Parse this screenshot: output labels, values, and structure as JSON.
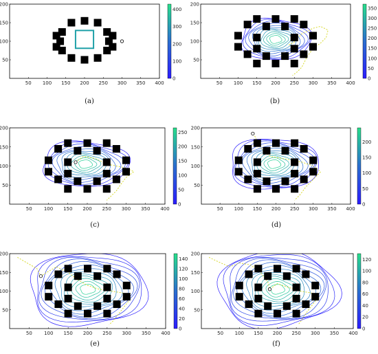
{
  "figure": {
    "panels_count": 6
  },
  "chart_data": [
    {
      "type": "contour",
      "caption": "(a)",
      "xlim": [
        0,
        400
      ],
      "ylim": [
        0,
        200
      ],
      "xticks": [
        "50",
        "100",
        "150",
        "200",
        "250",
        "300",
        "350",
        "400"
      ],
      "yticks": [
        "50",
        "100",
        "150",
        "200"
      ],
      "colorbar": {
        "min": 0,
        "max": 430,
        "ticks": [
          "0",
          "100",
          "200",
          "300",
          "400"
        ]
      },
      "contour_center": [
        200,
        105
      ],
      "contour_levels": 1,
      "contour_extent": [
        0.6,
        0.6
      ],
      "plume": [],
      "marker": [
        300,
        100
      ],
      "square_field": true,
      "colors": {
        "low": "#2a1cff",
        "high": "#28e08c",
        "frame": "#000000",
        "plume": "#d4d61a"
      }
    },
    {
      "type": "contour",
      "caption": "(b)",
      "xlim": [
        0,
        400
      ],
      "ylim": [
        0,
        200
      ],
      "xticks": [
        "50",
        "100",
        "150",
        "200",
        "250",
        "300",
        "350",
        "400"
      ],
      "yticks": [
        "50",
        "100",
        "150",
        "200"
      ],
      "colorbar": {
        "min": 0,
        "max": 370,
        "ticks": [
          "0",
          "50",
          "100",
          "150",
          "200",
          "250",
          "300",
          "350"
        ]
      },
      "contour_center": [
        200,
        105
      ],
      "contour_levels": 11,
      "contour_extent": [
        1.45,
        1.25
      ],
      "plume": [
        [
          235,
          90
        ],
        [
          250,
          98
        ],
        [
          270,
          120
        ],
        [
          300,
          135
        ],
        [
          320,
          140
        ],
        [
          340,
          130
        ],
        [
          335,
          110
        ],
        [
          320,
          95
        ],
        [
          300,
          80
        ],
        [
          285,
          60
        ],
        [
          270,
          30
        ],
        [
          255,
          15
        ],
        [
          245,
          8
        ]
      ],
      "marker": null,
      "square_field": false,
      "colors": {
        "low": "#2a1cff",
        "high": "#28e08c",
        "frame": "#000000",
        "plume": "#d4d61a"
      }
    },
    {
      "type": "contour",
      "caption": "(c)",
      "xlim": [
        0,
        400
      ],
      "ylim": [
        0,
        200
      ],
      "xticks": [
        "50",
        "100",
        "150",
        "200",
        "250",
        "300",
        "350",
        "400"
      ],
      "yticks": [
        "50",
        "100",
        "150",
        "200"
      ],
      "colorbar": {
        "min": 0,
        "max": 265,
        "ticks": [
          "0",
          "50",
          "100",
          "150",
          "200",
          "250"
        ]
      },
      "contour_center": [
        195,
        105
      ],
      "contour_levels": 11,
      "contour_extent": [
        1.75,
        1.35
      ],
      "plume": [
        [
          170,
          110
        ],
        [
          190,
          125
        ],
        [
          220,
          120
        ],
        [
          250,
          105
        ],
        [
          275,
          100
        ],
        [
          300,
          95
        ],
        [
          320,
          85
        ],
        [
          300,
          70
        ],
        [
          285,
          50
        ],
        [
          275,
          35
        ],
        [
          260,
          20
        ],
        [
          250,
          10
        ]
      ],
      "marker": [
        170,
        110
      ],
      "square_field": false,
      "colors": {
        "low": "#2a1cff",
        "high": "#28e08c",
        "frame": "#000000",
        "plume": "#d4d61a"
      }
    },
    {
      "type": "contour",
      "caption": "(d)",
      "xlim": [
        0,
        400
      ],
      "ylim": [
        0,
        200
      ],
      "xticks": [
        "50",
        "100",
        "150",
        "200",
        "250",
        "300",
        "350",
        "400"
      ],
      "yticks": [
        "50",
        "100",
        "150",
        "200"
      ],
      "colorbar": {
        "min": 0,
        "max": 245,
        "ticks": [
          "0",
          "50",
          "100",
          "150",
          "200"
        ]
      },
      "contour_center": [
        195,
        105
      ],
      "contour_levels": 12,
      "contour_extent": [
        1.9,
        1.55
      ],
      "plume": [
        [
          140,
          185
        ],
        [
          150,
          165
        ],
        [
          165,
          140
        ],
        [
          185,
          125
        ],
        [
          215,
          120
        ],
        [
          245,
          115
        ],
        [
          270,
          110
        ],
        [
          300,
          100
        ],
        [
          320,
          85
        ],
        [
          300,
          65
        ],
        [
          280,
          45
        ],
        [
          265,
          25
        ],
        [
          250,
          10
        ]
      ],
      "marker": [
        138,
        185
      ],
      "square_field": false,
      "colors": {
        "low": "#2a1cff",
        "high": "#28e08c",
        "frame": "#000000",
        "plume": "#d4d61a"
      }
    },
    {
      "type": "contour",
      "caption": "(e)",
      "xlim": [
        0,
        400
      ],
      "ylim": [
        0,
        200
      ],
      "xticks": [
        "50",
        "100",
        "150",
        "200",
        "250",
        "300",
        "350",
        "400"
      ],
      "yticks": [
        "50",
        "100",
        "150",
        "200"
      ],
      "colorbar": {
        "min": 0,
        "max": 150,
        "ticks": [
          "0",
          "20",
          "40",
          "60",
          "80",
          "100",
          "120",
          "140"
        ]
      },
      "contour_center": [
        200,
        105
      ],
      "contour_levels": 13,
      "contour_extent": [
        2.4,
        2.3
      ],
      "plume": [
        [
          20,
          190
        ],
        [
          45,
          175
        ],
        [
          70,
          160
        ],
        [
          80,
          140
        ],
        [
          95,
          150
        ],
        [
          120,
          165
        ],
        [
          150,
          150
        ],
        [
          175,
          130
        ],
        [
          200,
          115
        ],
        [
          230,
          105
        ],
        [
          260,
          100
        ],
        [
          290,
          95
        ],
        [
          310,
          80
        ],
        [
          295,
          60
        ],
        [
          280,
          40
        ],
        [
          265,
          20
        ],
        [
          255,
          10
        ]
      ],
      "marker": [
        80,
        140
      ],
      "square_field": false,
      "colors": {
        "low": "#2a1cff",
        "high": "#28e08c",
        "frame": "#000000",
        "plume": "#d4d61a"
      }
    },
    {
      "type": "contour",
      "caption": "(f)",
      "xlim": [
        0,
        400
      ],
      "ylim": [
        0,
        200
      ],
      "xticks": [
        "50",
        "100",
        "150",
        "200",
        "250",
        "300",
        "350",
        "400"
      ],
      "yticks": [
        "50",
        "100",
        "150",
        "200"
      ],
      "colorbar": {
        "min": 0,
        "max": 130,
        "ticks": [
          "0",
          "20",
          "40",
          "60",
          "80",
          "100",
          "120"
        ]
      },
      "contour_center": [
        200,
        105
      ],
      "contour_levels": 14,
      "contour_extent": [
        2.5,
        2.4
      ],
      "plume": [
        [
          20,
          190
        ],
        [
          45,
          178
        ],
        [
          75,
          165
        ],
        [
          100,
          175
        ],
        [
          130,
          170
        ],
        [
          155,
          150
        ],
        [
          175,
          125
        ],
        [
          180,
          105
        ],
        [
          200,
          120
        ],
        [
          230,
          110
        ],
        [
          260,
          100
        ],
        [
          290,
          95
        ],
        [
          305,
          80
        ],
        [
          290,
          60
        ],
        [
          275,
          40
        ],
        [
          262,
          20
        ],
        [
          255,
          10
        ]
      ],
      "marker": [
        180,
        105
      ],
      "square_field": false,
      "colors": {
        "low": "#2a1cff",
        "high": "#28e08c",
        "frame": "#000000",
        "plume": "#d4d61a"
      }
    }
  ]
}
